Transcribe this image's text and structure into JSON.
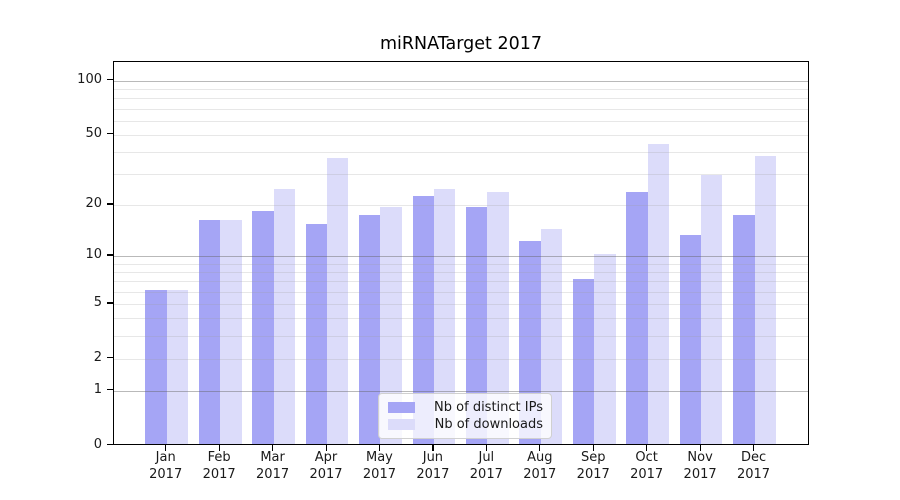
{
  "title": "miRNATarget 2017",
  "chart_data": {
    "type": "bar",
    "title": "miRNATarget 2017",
    "categories": [
      "Jan 2017",
      "Feb 2017",
      "Mar 2017",
      "Apr 2017",
      "May 2017",
      "Jun 2017",
      "Jul 2017",
      "Aug 2017",
      "Sep 2017",
      "Oct 2017",
      "Nov 2017",
      "Dec 2017"
    ],
    "series": [
      {
        "name": "Nb of distinct IPs",
        "color": "#a5a5f5",
        "values": [
          6,
          16,
          18,
          15,
          17,
          22,
          19,
          12,
          7,
          23,
          13,
          17
        ]
      },
      {
        "name": "Nb of downloads",
        "color": "#dcdcfa",
        "values": [
          6,
          16,
          24,
          36,
          19,
          24,
          23,
          14,
          10,
          43,
          29,
          37
        ]
      }
    ],
    "yscale": "log10(1+v)",
    "ylim": [
      0,
      127
    ],
    "y_tick_labels": [
      "0",
      "1",
      "2",
      "5",
      "10",
      "20",
      "50",
      "100"
    ],
    "y_tick_values": [
      0,
      1,
      2,
      5,
      10,
      20,
      50,
      100
    ],
    "y_major_gridlines": [
      1,
      10,
      100
    ],
    "y_minor_gridlines": [
      2,
      3,
      4,
      5,
      6,
      7,
      8,
      9,
      20,
      30,
      40,
      50,
      60,
      70,
      80,
      90
    ],
    "grid": "on",
    "legend": {
      "position": "lower center"
    }
  },
  "colors": {
    "series_ips": "#a5a5f5",
    "series_downloads": "#dcdcfa",
    "grid_major": "#b0b0b0",
    "grid_minor": "#ececec",
    "spine": "#000000",
    "text": "#1a1a1a",
    "legend_border": "#d0d0d0"
  }
}
